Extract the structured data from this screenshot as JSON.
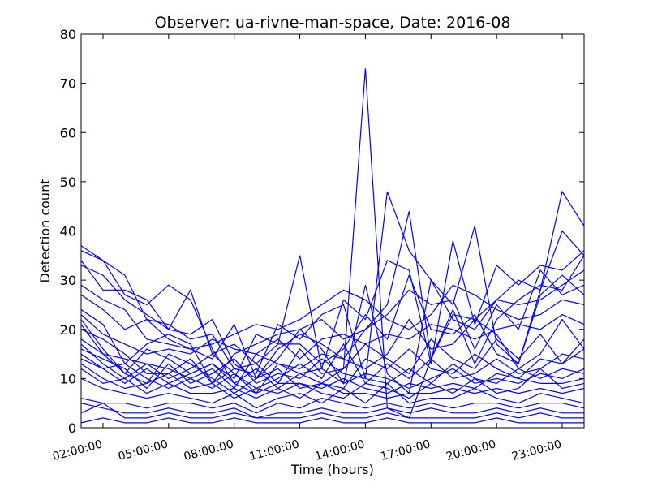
{
  "chart_data": {
    "type": "line",
    "title": "Observer: ua-rivne-man-space, Date: 2016-08",
    "xlabel": "Time (hours)",
    "ylabel": "Detection count",
    "xlim": [
      1,
      24
    ],
    "ylim": [
      0,
      80
    ],
    "yticks": [
      0,
      10,
      20,
      30,
      40,
      50,
      60,
      70,
      80
    ],
    "xticks": [
      2,
      5,
      8,
      11,
      14,
      17,
      20,
      23
    ],
    "xtick_labels": [
      "02:00:00",
      "05:00:00",
      "08:00:00",
      "11:00:00",
      "14:00:00",
      "17:00:00",
      "20:00:00",
      "23:00:00"
    ],
    "grid": false,
    "line_color": "#0000ff",
    "x": [
      1,
      2,
      3,
      4,
      5,
      6,
      7,
      8,
      9,
      10,
      11,
      12,
      13,
      14,
      15,
      16,
      17,
      18,
      19,
      20,
      21,
      22,
      23,
      24
    ],
    "series": [
      {
        "values": [
          37,
          34,
          27,
          25,
          29,
          26,
          16,
          9,
          7,
          13,
          11,
          9,
          12,
          73,
          4,
          2,
          14,
          23,
          22,
          26,
          30,
          28,
          48,
          41
        ]
      },
      {
        "values": [
          36,
          34,
          31,
          22,
          21,
          18,
          19,
          12,
          11,
          21,
          18,
          23,
          25,
          10,
          48,
          36,
          30,
          25,
          41,
          17,
          13,
          28,
          40,
          35
        ]
      },
      {
        "values": [
          34,
          28,
          28,
          26,
          20,
          19,
          22,
          13,
          10,
          16,
          19,
          17,
          14,
          20,
          25,
          44,
          14,
          24,
          13,
          22,
          26,
          29,
          28,
          35
        ]
      },
      {
        "values": [
          33,
          31,
          26,
          23,
          20,
          28,
          15,
          17,
          13,
          17,
          35,
          12,
          26,
          22,
          34,
          32,
          13,
          38,
          21,
          33,
          29,
          33,
          32,
          36
        ]
      },
      {
        "values": [
          27,
          24,
          20,
          22,
          18,
          16,
          14,
          21,
          10,
          14,
          20,
          16,
          9,
          29,
          11,
          7,
          30,
          22,
          20,
          26,
          25,
          26,
          29,
          32
        ]
      },
      {
        "values": [
          24,
          21,
          13,
          17,
          19,
          17,
          9,
          15,
          17,
          19,
          20,
          22,
          18,
          20,
          23,
          28,
          25,
          26,
          16,
          25,
          20,
          32,
          27,
          29
        ]
      },
      {
        "values": [
          22,
          16,
          11,
          16,
          14,
          11,
          13,
          10,
          19,
          17,
          17,
          13,
          16,
          23,
          18,
          31,
          20,
          19,
          23,
          15,
          13,
          27,
          31,
          27
        ]
      },
      {
        "values": [
          21,
          15,
          14,
          13,
          12,
          10,
          12,
          8,
          15,
          13,
          12,
          15,
          14,
          12,
          15,
          22,
          16,
          17,
          22,
          19,
          12,
          15,
          22,
          16
        ]
      },
      {
        "values": [
          20,
          18,
          15,
          11,
          11,
          14,
          9,
          12,
          13,
          9,
          16,
          11,
          12,
          17,
          14,
          11,
          18,
          14,
          12,
          18,
          14,
          19,
          13,
          18
        ]
      },
      {
        "values": [
          18,
          15,
          11,
          9,
          15,
          13,
          10,
          7,
          10,
          12,
          8,
          9,
          8,
          14,
          12,
          16,
          12,
          11,
          15,
          12,
          10,
          14,
          13,
          16
        ]
      },
      {
        "values": [
          17,
          13,
          10,
          13,
          10,
          12,
          15,
          11,
          8,
          10,
          13,
          10,
          17,
          9,
          13,
          10,
          14,
          10,
          11,
          14,
          11,
          12,
          15,
          14
        ]
      },
      {
        "values": [
          16,
          14,
          12,
          8,
          13,
          9,
          11,
          14,
          9,
          11,
          10,
          14,
          11,
          10,
          9,
          12,
          9,
          13,
          10,
          9,
          12,
          10,
          12,
          11
        ]
      },
      {
        "values": [
          15,
          12,
          9,
          12,
          9,
          11,
          13,
          9,
          12,
          8,
          11,
          12,
          9,
          11,
          10,
          8,
          10,
          12,
          9,
          10,
          9,
          11,
          10,
          12
        ]
      },
      {
        "values": [
          14,
          12,
          13,
          10,
          8,
          10,
          8,
          11,
          7,
          9,
          9,
          8,
          10,
          8,
          7,
          9,
          8,
          9,
          8,
          11,
          10,
          9,
          9,
          10
        ]
      },
      {
        "values": [
          13,
          10,
          8,
          9,
          11,
          8,
          9,
          6,
          8,
          7,
          9,
          7,
          6,
          9,
          8,
          6,
          9,
          7,
          10,
          7,
          8,
          12,
          8,
          9
        ]
      },
      {
        "values": [
          12,
          9,
          10,
          7,
          9,
          7,
          7,
          8,
          6,
          8,
          6,
          9,
          7,
          7,
          6,
          7,
          7,
          8,
          7,
          8,
          7,
          8,
          7,
          8
        ]
      },
      {
        "values": [
          10,
          8,
          7,
          6,
          7,
          6,
          5,
          7,
          4,
          6,
          7,
          5,
          8,
          5,
          9,
          5,
          6,
          6,
          8,
          6,
          5,
          7,
          6,
          5
        ]
      },
      {
        "values": [
          6,
          5,
          5,
          4,
          5,
          5,
          4,
          5,
          3,
          5,
          4,
          6,
          5,
          4,
          5,
          4,
          5,
          4,
          5,
          5,
          4,
          5,
          5,
          4
        ]
      },
      {
        "values": [
          5,
          4,
          3,
          3,
          4,
          3,
          3,
          4,
          2,
          3,
          3,
          4,
          3,
          3,
          4,
          3,
          4,
          3,
          3,
          4,
          3,
          4,
          3,
          3
        ]
      },
      {
        "values": [
          3,
          5,
          2,
          2,
          3,
          2,
          2,
          3,
          2,
          2,
          2,
          3,
          2,
          2,
          3,
          2,
          2,
          2,
          2,
          3,
          2,
          3,
          2,
          2
        ]
      },
      {
        "values": [
          1,
          2,
          1,
          1,
          2,
          1,
          1,
          2,
          1,
          1,
          1,
          2,
          1,
          1,
          2,
          1,
          1,
          1,
          1,
          2,
          1,
          1,
          1,
          1
        ]
      },
      {
        "values": [
          29,
          26,
          24,
          18,
          17,
          16,
          17,
          19,
          21,
          20,
          22,
          25,
          28,
          26,
          22,
          20,
          23,
          29,
          27,
          24,
          22,
          23,
          26,
          25
        ]
      },
      {
        "values": [
          23,
          19,
          17,
          15,
          16,
          15,
          18,
          16,
          15,
          18,
          14,
          18,
          19,
          17,
          19,
          18,
          21,
          20,
          18,
          20,
          21,
          20,
          23,
          21
        ]
      }
    ]
  }
}
